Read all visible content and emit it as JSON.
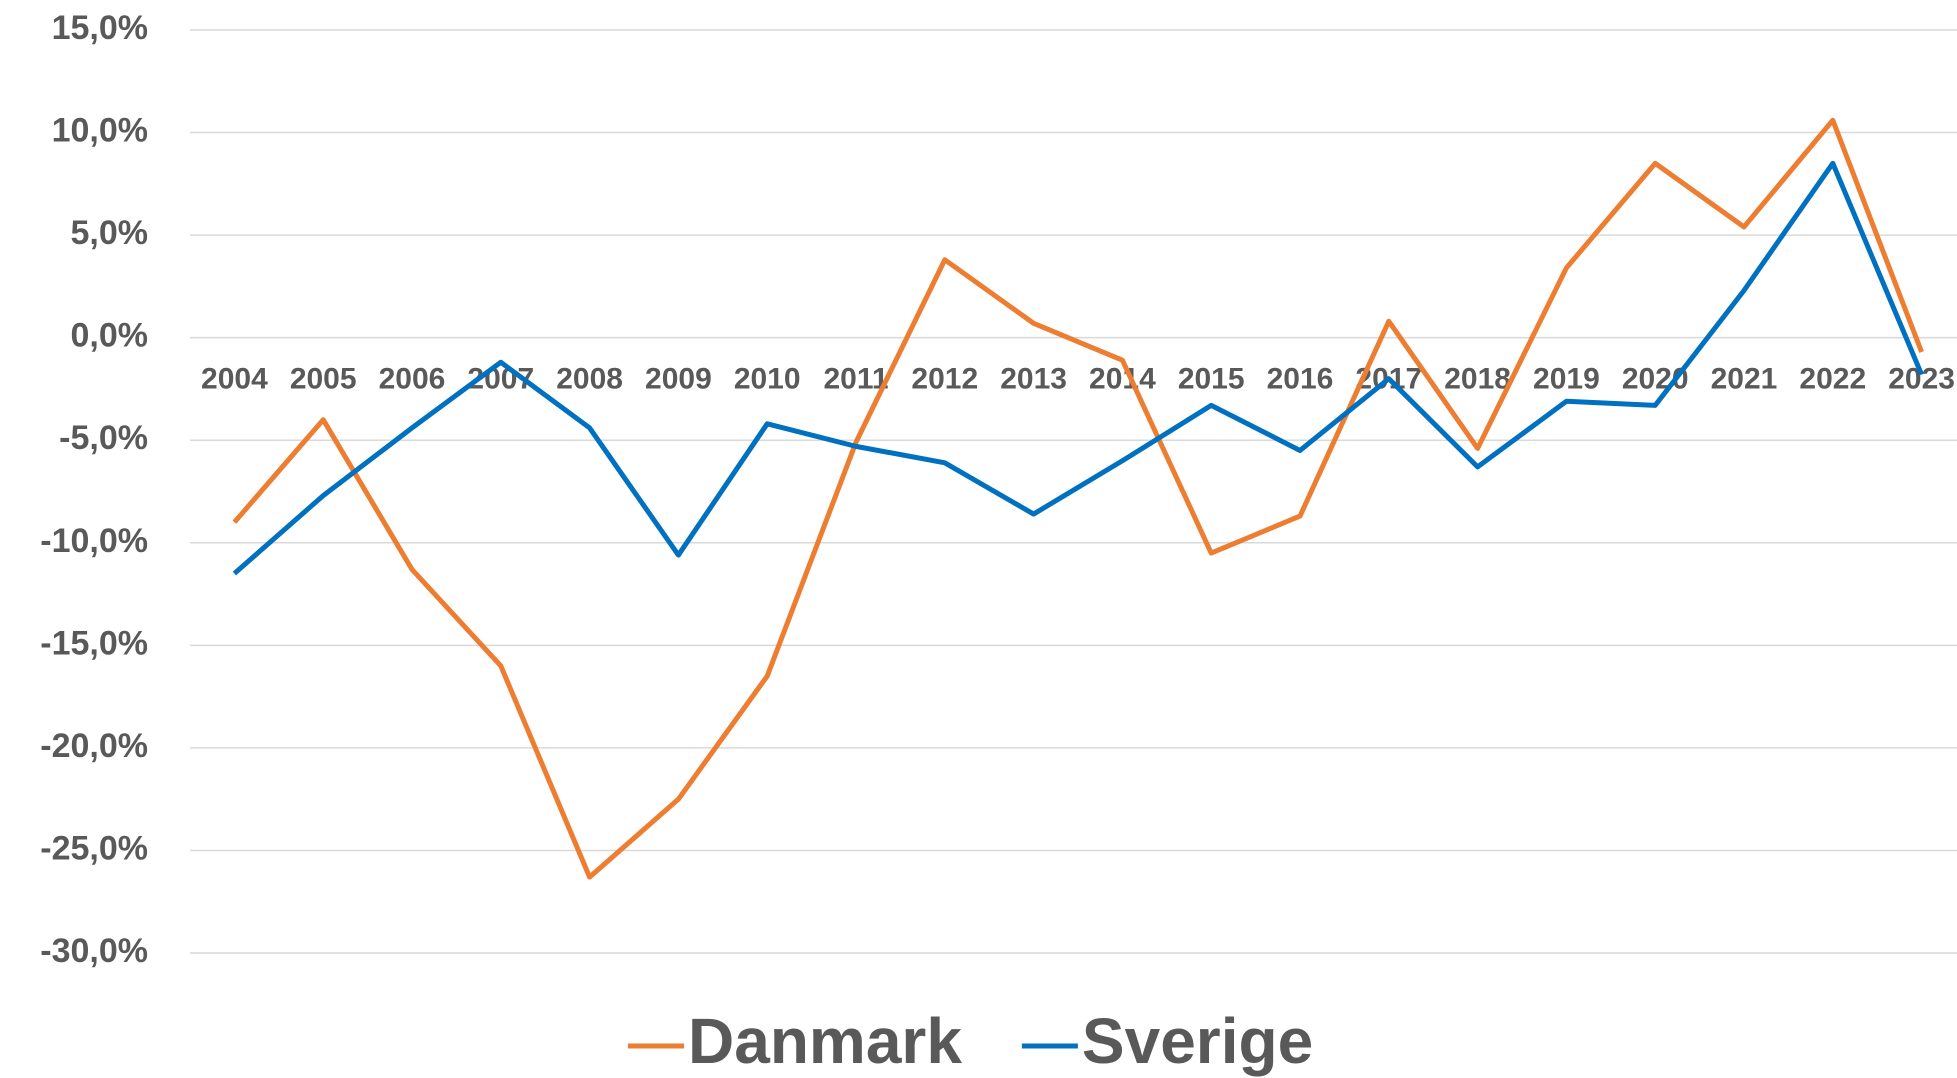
{
  "chart_data": {
    "type": "line",
    "categories": [
      "2004",
      "2005",
      "2006",
      "2007",
      "2008",
      "2009",
      "2010",
      "2011",
      "2012",
      "2013",
      "2014",
      "2015",
      "2016",
      "2017",
      "2018",
      "2019",
      "2020",
      "2021",
      "2022",
      "2023"
    ],
    "series": [
      {
        "name": "Danmark",
        "color": "#ed7d31",
        "values": [
          -9.0,
          -4.0,
          -11.3,
          -16.0,
          -26.3,
          -22.5,
          -16.5,
          -5.1,
          3.8,
          0.7,
          -1.1,
          -10.5,
          -8.7,
          0.8,
          -5.4,
          3.4,
          8.5,
          5.4,
          10.6,
          -0.7
        ]
      },
      {
        "name": "Sverige",
        "color": "#0070c0",
        "values": [
          -11.5,
          -7.7,
          -4.4,
          -1.2,
          -4.4,
          -10.6,
          -4.2,
          -5.3,
          -6.1,
          -8.6,
          -6.0,
          -3.3,
          -5.5,
          -2.0,
          -6.3,
          -3.1,
          -3.3,
          2.3,
          8.5,
          -1.8
        ]
      }
    ],
    "ylim": [
      -30,
      15
    ],
    "yticks": [
      {
        "value": -30,
        "label": "-30,0%"
      },
      {
        "value": -25,
        "label": "-25,0%"
      },
      {
        "value": -20,
        "label": "-20,0%"
      },
      {
        "value": -15,
        "label": "-15,0%"
      },
      {
        "value": -10,
        "label": "-10,0%"
      },
      {
        "value": -5,
        "label": "-5,0%"
      },
      {
        "value": 0,
        "label": "0,0%"
      },
      {
        "value": 5,
        "label": "5,0%"
      },
      {
        "value": 10,
        "label": "10,0%"
      },
      {
        "value": 15,
        "label": "15,0%"
      }
    ],
    "grid": true,
    "legend": "bottom"
  }
}
